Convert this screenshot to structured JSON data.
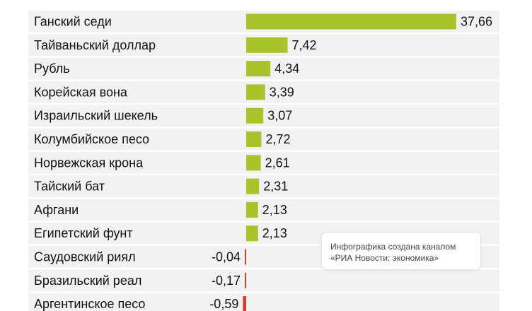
{
  "chart_data": {
    "type": "bar",
    "orientation": "horizontal",
    "categories": [
      "Ганский седи",
      "Тайваньский доллар",
      "Рубль",
      "Корейская вона",
      "Израильский шекель",
      "Колумбийское песо",
      "Норвежская крона",
      "Тайский бат",
      "Афгани",
      "Египетский фунт",
      "Саудовский риял",
      "Бразильский реал",
      "Аргентинское песо"
    ],
    "values": [
      37.66,
      7.42,
      4.34,
      3.39,
      3.07,
      2.72,
      2.61,
      2.31,
      2.13,
      2.13,
      -0.04,
      -0.17,
      -0.59
    ],
    "value_labels": [
      "37,66",
      "7,42",
      "4,34",
      "3,39",
      "3,07",
      "2,72",
      "2,61",
      "2,31",
      "2,13",
      "2,13",
      "-0,04",
      "-0,17",
      "-0,59"
    ],
    "colors": {
      "positive": "#a8c42a",
      "negative": "#e0382e",
      "row_background": "#f2f2f2"
    }
  },
  "note": {
    "line1": "Инфографика создана каналом",
    "line2": "«РИА Новости: экономика»"
  }
}
